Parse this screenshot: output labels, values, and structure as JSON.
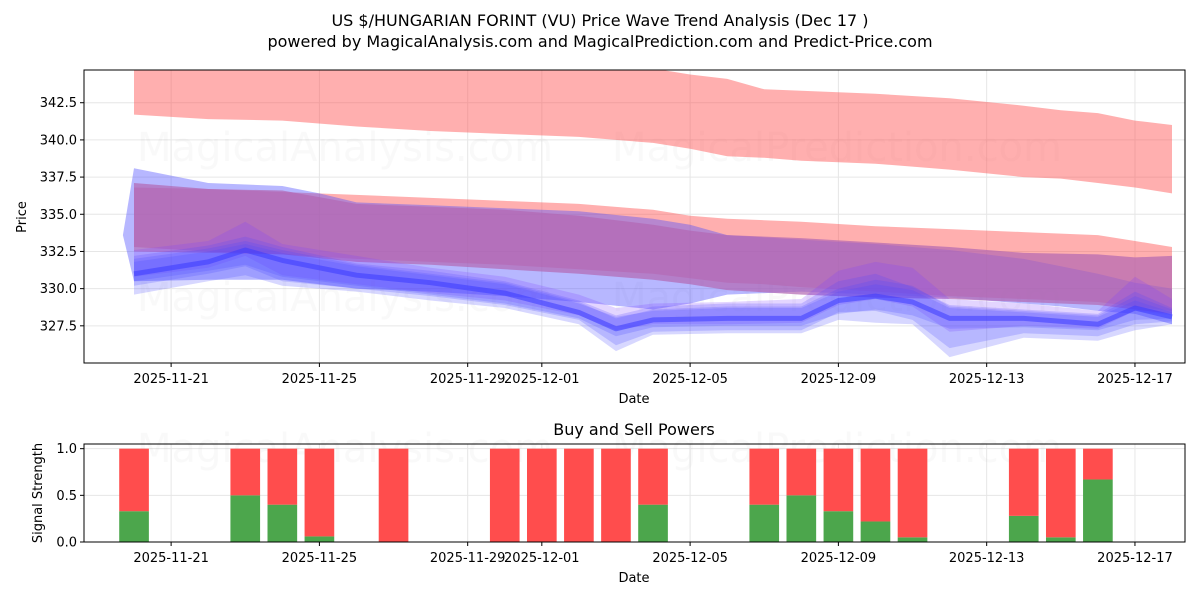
{
  "title_line1": "US $/HUNGARIAN FORINT (VU) Price Wave Trend Analysis (Dec 17 )",
  "title_line2": "powered by MagicalAnalysis.com and MagicalPrediction.com and Predict-Price.com",
  "watermarks": [
    "MagicalAnalysis.com",
    "MagicalPrediction.com"
  ],
  "colors": {
    "red": "#ff4d4d",
    "blue": "#4a4aff",
    "purple": "#b266b2",
    "green": "#4ca64c",
    "grid": "#e6e6e6"
  },
  "chart_data": [
    {
      "type": "area",
      "name": "price-wave",
      "title": "",
      "xlabel": "Date",
      "ylabel": "Price",
      "x_range": [
        "2025-11-18.7",
        "2025-12-18.3"
      ],
      "ylim": [
        325.0,
        344.7
      ],
      "grid": true,
      "xticks": [
        "2025-11-21",
        "2025-11-25",
        "2025-11-29",
        "2025-12-01",
        "2025-12-05",
        "2025-12-09",
        "2025-12-13",
        "2025-12-17"
      ],
      "yticks": [
        "327.5",
        "330.0",
        "332.5",
        "335.0",
        "337.5",
        "340.0",
        "342.5"
      ],
      "bands": [
        {
          "name": "upper-red-band",
          "color": "red",
          "opacity": 0.45,
          "x": [
            0,
            2,
            4,
            6,
            8,
            10,
            12,
            14,
            15,
            16,
            17,
            18,
            20,
            22,
            24,
            25,
            26,
            27,
            28
          ],
          "upper": [
            345.0,
            345.0,
            345.0,
            345.0,
            345.0,
            345.0,
            345.0,
            344.8,
            344.4,
            344.1,
            343.4,
            343.3,
            343.1,
            342.8,
            342.3,
            342.0,
            341.8,
            341.3,
            341.0
          ],
          "lower": [
            341.7,
            341.4,
            341.3,
            340.9,
            340.6,
            340.4,
            340.2,
            339.8,
            339.4,
            338.9,
            338.8,
            338.6,
            338.4,
            338.0,
            337.5,
            337.4,
            337.1,
            336.8,
            336.4
          ]
        },
        {
          "name": "lower-red-band",
          "color": "red",
          "opacity": 0.45,
          "x": [
            0,
            2,
            4,
            6,
            8,
            10,
            12,
            14,
            15,
            16,
            17,
            18,
            20,
            22,
            24,
            25,
            26,
            27,
            28
          ],
          "upper": [
            336.8,
            336.7,
            336.5,
            336.3,
            336.1,
            335.9,
            335.7,
            335.3,
            334.9,
            334.7,
            334.6,
            334.5,
            334.2,
            334.0,
            333.8,
            333.7,
            333.6,
            333.2,
            332.8
          ],
          "lower": [
            332.5,
            332.4,
            332.3,
            332.0,
            331.8,
            331.6,
            331.3,
            331.0,
            330.7,
            330.4,
            330.3,
            330.1,
            329.8,
            329.5,
            329.3,
            329.2,
            329.1,
            328.8,
            328.5
          ]
        },
        {
          "name": "blue-envelope",
          "color": "blue",
          "opacity": 0.4,
          "x": [
            -0.3,
            0,
            2,
            4,
            5,
            6,
            8,
            10,
            12,
            14,
            15,
            16,
            18,
            20,
            22,
            24,
            25,
            26,
            27,
            28
          ],
          "upper": [
            333.6,
            338.1,
            337.1,
            336.9,
            336.4,
            335.8,
            335.6,
            335.4,
            335.2,
            334.7,
            334.3,
            333.6,
            333.3,
            333.0,
            332.6,
            332.0,
            331.5,
            331.0,
            330.4,
            330.0
          ],
          "lower": [
            333.6,
            330.5,
            330.6,
            330.6,
            330.3,
            330.0,
            329.8,
            329.5,
            329.1,
            328.6,
            329.0,
            329.6,
            329.8,
            329.6,
            329.4,
            329.0,
            328.8,
            328.5,
            328.3,
            327.6
          ]
        },
        {
          "name": "purple-band",
          "color": "purple",
          "opacity": 0.7,
          "x": [
            0,
            2,
            4,
            6,
            8,
            10,
            12,
            14,
            15,
            16,
            18,
            20,
            22,
            24,
            26,
            27,
            28
          ],
          "upper": [
            337.1,
            336.7,
            336.6,
            335.7,
            335.5,
            335.3,
            334.9,
            334.3,
            333.9,
            333.6,
            333.4,
            333.1,
            332.8,
            332.4,
            332.3,
            332.1,
            332.2
          ],
          "lower": [
            332.8,
            332.5,
            332.3,
            331.8,
            331.6,
            331.3,
            331.0,
            330.6,
            330.3,
            329.9,
            329.6,
            329.4,
            329.3,
            329.1,
            328.9,
            328.6,
            328.3
          ]
        }
      ],
      "waves": [
        {
          "name": "wave-1",
          "x": [
            0,
            2,
            3,
            4,
            6,
            8,
            10,
            12,
            13,
            14,
            16,
            18,
            19,
            20,
            21,
            22,
            24,
            26,
            27,
            28
          ],
          "upper": [
            332.2,
            332.9,
            333.5,
            332.8,
            331.7,
            331.2,
            330.5,
            329.2,
            328.2,
            328.8,
            329.0,
            329.0,
            330.5,
            331.0,
            330.1,
            328.9,
            328.6,
            328.3,
            329.8,
            328.7
          ],
          "lower": [
            330.2,
            331.0,
            331.5,
            330.5,
            330.0,
            329.5,
            328.9,
            327.9,
            326.2,
            327.1,
            327.2,
            327.2,
            328.4,
            328.5,
            327.9,
            326.0,
            327.0,
            326.8,
            327.6,
            327.8
          ]
        },
        {
          "name": "wave-2",
          "x": [
            0,
            2,
            3,
            4,
            6,
            8,
            10,
            12,
            13,
            14,
            16,
            18,
            19,
            20,
            21,
            22,
            24,
            26,
            27,
            28
          ],
          "upper": [
            332.6,
            333.2,
            334.5,
            333.0,
            332.2,
            331.4,
            330.8,
            329.6,
            328.7,
            329.0,
            329.1,
            329.3,
            331.2,
            331.8,
            331.4,
            329.3,
            329.0,
            328.5,
            330.8,
            329.3
          ],
          "lower": [
            330.8,
            331.4,
            332.2,
            330.9,
            330.3,
            329.7,
            329.2,
            328.2,
            327.2,
            327.6,
            327.6,
            327.7,
            328.9,
            329.3,
            328.8,
            327.1,
            327.5,
            327.3,
            328.5,
            328.2
          ]
        },
        {
          "name": "wave-3",
          "x": [
            0,
            2,
            3,
            4,
            6,
            8,
            10,
            12,
            13,
            14,
            16,
            18,
            19,
            20,
            21,
            22,
            24,
            26,
            27,
            28
          ],
          "upper": [
            332.0,
            332.7,
            333.2,
            332.6,
            331.6,
            331.0,
            330.4,
            329.1,
            328.0,
            328.6,
            328.8,
            328.8,
            330.0,
            330.6,
            330.2,
            328.8,
            328.5,
            328.2,
            329.5,
            328.6
          ],
          "lower": [
            329.6,
            330.5,
            330.9,
            330.2,
            329.8,
            329.2,
            328.7,
            327.6,
            325.8,
            326.9,
            327.0,
            327.0,
            327.9,
            327.7,
            327.6,
            325.4,
            326.7,
            326.5,
            327.2,
            327.6
          ]
        },
        {
          "name": "wave-4",
          "x": [
            0,
            2,
            3,
            4,
            6,
            8,
            10,
            12,
            13,
            14,
            16,
            18,
            19,
            20,
            21,
            22,
            24,
            26,
            27,
            28
          ],
          "upper": [
            331.8,
            332.5,
            333.0,
            332.4,
            331.5,
            330.9,
            330.3,
            329.0,
            328.1,
            328.5,
            328.7,
            328.7,
            329.8,
            330.3,
            329.9,
            328.7,
            328.4,
            328.1,
            329.2,
            328.4
          ],
          "lower": [
            330.5,
            331.2,
            331.6,
            330.8,
            330.2,
            329.6,
            329.0,
            328.0,
            326.8,
            327.4,
            327.5,
            327.5,
            328.3,
            328.6,
            328.2,
            327.3,
            327.4,
            327.2,
            327.9,
            328.0
          ]
        }
      ],
      "center_line": {
        "name": "wave-center-line",
        "color": "blue",
        "x": [
          0,
          2,
          3,
          4,
          5,
          6,
          8,
          10,
          12,
          13,
          14,
          16,
          18,
          19,
          20,
          21,
          22,
          24,
          26,
          27,
          28
        ],
        "y": [
          331.0,
          331.8,
          332.6,
          331.9,
          331.4,
          330.9,
          330.4,
          329.7,
          328.4,
          327.3,
          327.9,
          328.0,
          328.0,
          329.2,
          329.5,
          329.1,
          328.0,
          328.0,
          327.6,
          328.7,
          328.1
        ]
      }
    },
    {
      "type": "bar",
      "name": "buy-sell-powers",
      "title": "Buy and Sell Powers",
      "xlabel": "Date",
      "ylabel": "Signal Strength",
      "ylim": [
        0,
        1.05
      ],
      "yticks": [
        "0.0",
        "0.5",
        "1.0"
      ],
      "xticks": [
        "2025-11-21",
        "2025-11-25",
        "2025-11-29",
        "2025-12-01",
        "2025-12-05",
        "2025-12-09",
        "2025-12-13",
        "2025-12-17"
      ],
      "grid": true,
      "days": [
        0,
        3,
        4,
        5,
        7,
        10,
        11,
        12,
        13,
        14,
        17,
        18,
        19,
        20,
        21,
        24,
        25,
        26
      ],
      "buy": [
        0.33,
        0.5,
        0.4,
        0.06,
        0.0,
        0.0,
        0.0,
        0.0,
        0.0,
        0.4,
        0.4,
        0.5,
        0.33,
        0.22,
        0.05,
        0.28,
        0.05,
        0.67
      ],
      "sell": [
        0.67,
        0.5,
        0.6,
        0.94,
        1.0,
        1.0,
        1.0,
        1.0,
        1.0,
        0.6,
        0.6,
        0.5,
        0.67,
        0.78,
        0.95,
        0.72,
        0.95,
        0.33
      ]
    }
  ]
}
